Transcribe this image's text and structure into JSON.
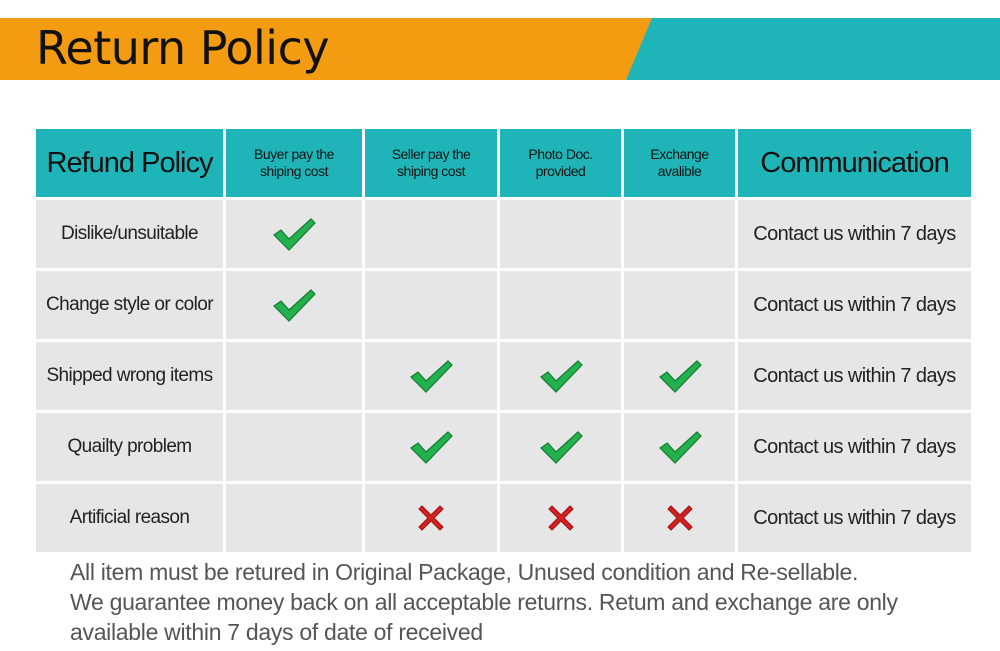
{
  "banner": {
    "title": "Return Policy",
    "colors": {
      "orange": "#f39c12",
      "teal": "#1fb5b8"
    }
  },
  "table": {
    "headers": [
      "Refund Policy",
      "Buyer pay the shiping cost",
      "Seller pay the shiping cost",
      "Photo Doc. provided",
      "Exchange avalible",
      "Communication"
    ],
    "rows": [
      {
        "reason": "Dislike/unsuitable",
        "marks": [
          "check",
          "",
          "",
          ""
        ],
        "communication": "Contact us within 7 days"
      },
      {
        "reason": "Change style or color",
        "marks": [
          "check",
          "",
          "",
          ""
        ],
        "communication": "Contact us within 7 days"
      },
      {
        "reason": "Shipped wrong items",
        "marks": [
          "",
          "check",
          "check",
          "check"
        ],
        "communication": "Contact us within 7 days"
      },
      {
        "reason": "Quailty problem",
        "marks": [
          "",
          "check",
          "check",
          "check"
        ],
        "communication": "Contact us within 7 days"
      },
      {
        "reason": "Artificial reason",
        "marks": [
          "",
          "cross",
          "cross",
          "cross"
        ],
        "communication": "Contact us within 7 days"
      }
    ],
    "colors": {
      "header": "#1fb5b8",
      "cell": "#e6e6e6",
      "check": "#22b14c",
      "cross": "#d42020"
    }
  },
  "footer": {
    "lines": [
      "All item must be retured in Original Package, Unused condition and Re-sellable.",
      "We guarantee money back on all acceptable returns. Retum and exchange are only",
      "available within 7 days of date of received"
    ]
  }
}
